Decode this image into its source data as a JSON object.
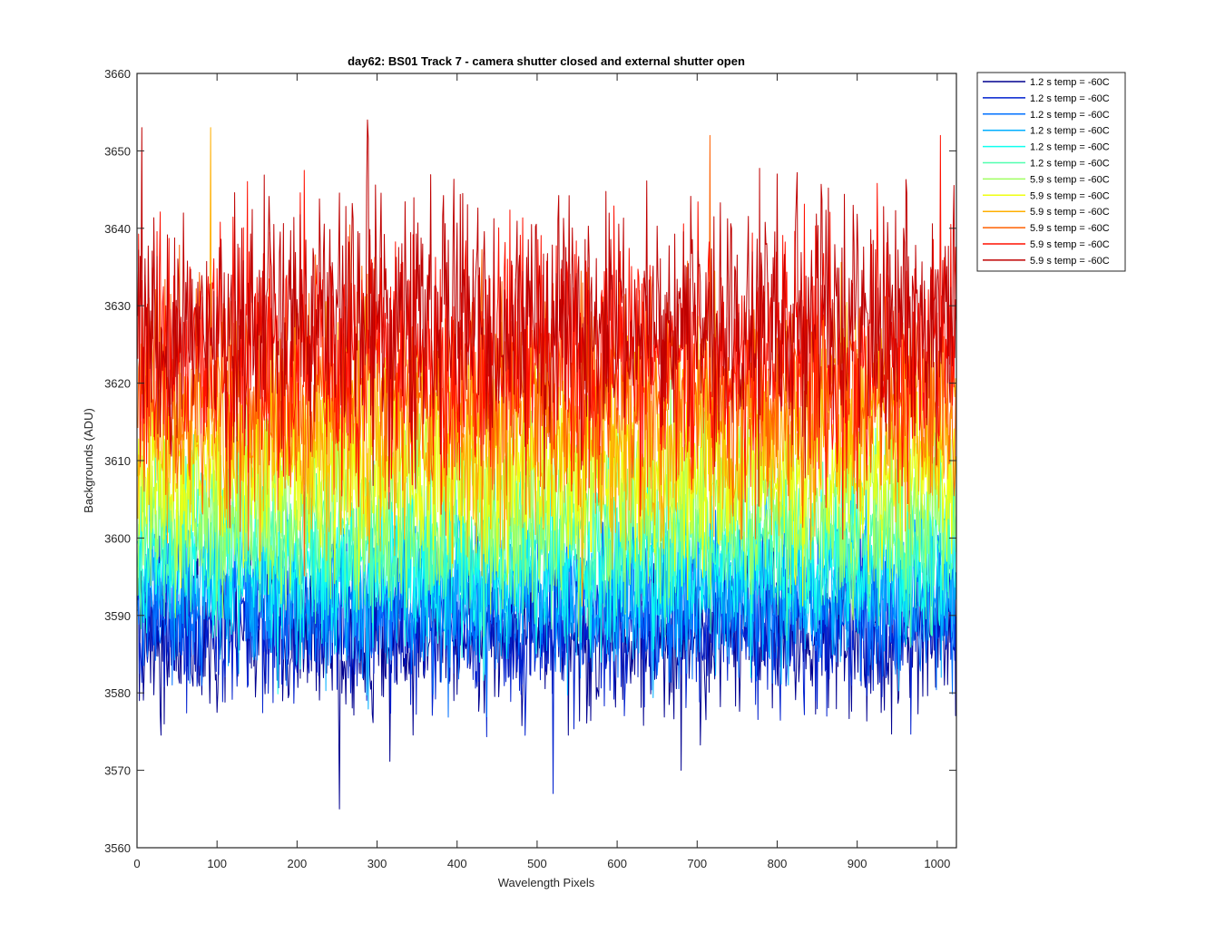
{
  "chart_data": {
    "type": "line",
    "title": "day62: BS01  Track 7 - camera shutter closed and external shutter open",
    "xlabel": "Wavelength Pixels",
    "ylabel": "Backgrounds (ADU)",
    "xlim": [
      0,
      1024
    ],
    "ylim": [
      3560,
      3660
    ],
    "xticks": [
      0,
      100,
      200,
      300,
      400,
      500,
      600,
      700,
      800,
      900,
      1000
    ],
    "yticks": [
      3560,
      3570,
      3580,
      3590,
      3600,
      3610,
      3620,
      3630,
      3640,
      3650,
      3660
    ],
    "grid": false,
    "legend_position": "outside-top-right",
    "x_range": [
      1,
      1024
    ],
    "series": [
      {
        "name": "1.2 s temp = -60C",
        "color": "#00008F",
        "mean": 3587,
        "spread": 5
      },
      {
        "name": "1.2 s temp = -60C",
        "color": "#0020CF",
        "mean": 3589,
        "spread": 5
      },
      {
        "name": "1.2 s temp = -60C",
        "color": "#0070FF",
        "mean": 3592,
        "spread": 5
      },
      {
        "name": "1.2 s temp = -60C",
        "color": "#00AFFF",
        "mean": 3594,
        "spread": 5
      },
      {
        "name": "1.2 s temp = -60C",
        "color": "#10FFEF",
        "mean": 3597,
        "spread": 5
      },
      {
        "name": "1.2 s temp = -60C",
        "color": "#50FFAF",
        "mean": 3600,
        "spread": 5
      },
      {
        "name": "5.9 s temp = -60C",
        "color": "#9FFF60",
        "mean": 3604,
        "spread": 6
      },
      {
        "name": "5.9 s temp = -60C",
        "color": "#EFFF10",
        "mean": 3609,
        "spread": 6
      },
      {
        "name": "5.9 s temp = -60C",
        "color": "#FFAF00",
        "mean": 3614,
        "spread": 7
      },
      {
        "name": "5.9 s temp = -60C",
        "color": "#FF6000",
        "mean": 3619,
        "spread": 7
      },
      {
        "name": "5.9 s temp = -60C",
        "color": "#FF1000",
        "mean": 3624,
        "spread": 8
      },
      {
        "name": "5.9 s temp = -60C",
        "color": "#BF0000",
        "mean": 3628,
        "spread": 8
      }
    ],
    "notable_extremes": [
      {
        "series": 0,
        "x": 253,
        "y": 3565
      },
      {
        "series": 1,
        "x": 520,
        "y": 3567
      },
      {
        "series": 0,
        "x": 680,
        "y": 3570
      },
      {
        "series": 11,
        "x": 288,
        "y": 3654
      },
      {
        "series": 11,
        "x": 6,
        "y": 3653
      },
      {
        "series": 8,
        "x": 92,
        "y": 3653
      },
      {
        "series": 10,
        "x": 1004,
        "y": 3652
      },
      {
        "series": 9,
        "x": 716,
        "y": 3652
      }
    ]
  }
}
